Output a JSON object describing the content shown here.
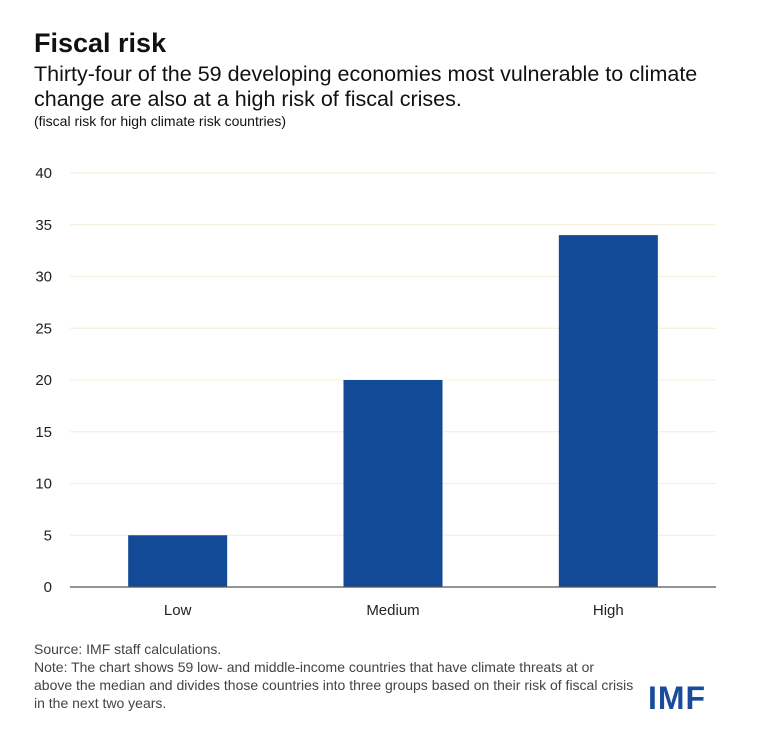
{
  "header": {
    "title": "Fiscal risk",
    "subtitle": "Thirty-four of the 59 developing economies most vulnerable to climate change are also at a high risk of fiscal crises.",
    "unit_note": "(fiscal risk for high climate risk countries)"
  },
  "footer": {
    "source": "Source: IMF staff calculations.",
    "note": "Note: The chart shows 59 low- and middle-income countries that have climate threats at or above the median and divides those countries into three groups based on their risk of fiscal crisis in the next two years."
  },
  "logo": {
    "text": "IMF",
    "color": "#1a4b9b"
  },
  "colors": {
    "bar": "#124a97",
    "grid": "#f3eed8",
    "axis": "#555555"
  },
  "chart_data": {
    "type": "bar",
    "categories": [
      "Low",
      "Medium",
      "High"
    ],
    "values": [
      5,
      20,
      34
    ],
    "ylim": [
      0,
      40
    ],
    "yticks": [
      0,
      5,
      10,
      15,
      20,
      25,
      30,
      35,
      40
    ],
    "xlabel": "",
    "ylabel": "",
    "grid": true,
    "legend": "none"
  }
}
